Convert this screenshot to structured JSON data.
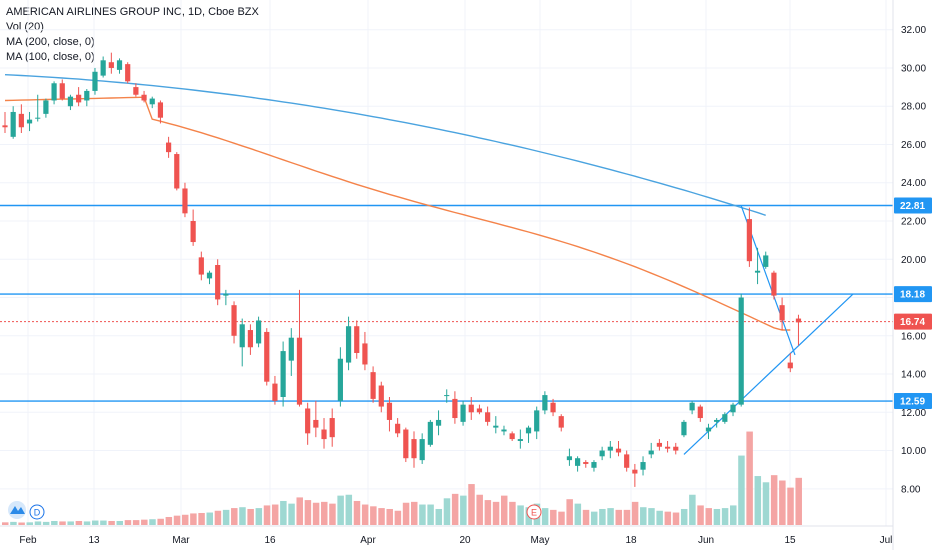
{
  "legend": {
    "title": "AMERICAN AIRLINES GROUP INC, 1D, Cboe BZX",
    "vol": "Vol (20)",
    "ma200": "MA (200, close, 0)",
    "ma100": "MA (100, close, 0)"
  },
  "markers": {
    "dividend": "D",
    "earnings": "E"
  },
  "colors": {
    "up": "#26a69a",
    "down": "#ef5350",
    "vol_up": "#9ed8d2",
    "vol_down": "#f4a5a4",
    "ma200": "#4aa3df",
    "ma100": "#f4834a",
    "level": "#2196f3",
    "current": "#ef5350"
  },
  "chart_data": {
    "type": "candlestick",
    "title": "AMERICAN AIRLINES GROUP INC, 1D, Cboe BZX",
    "y_axis": {
      "ylim": [
        6.5,
        33.5
      ],
      "ticks": [
        "32.00",
        "30.00",
        "28.00",
        "26.00",
        "24.00",
        "22.00",
        "20.00",
        "18.00",
        "16.00",
        "14.00",
        "12.00",
        "10.00",
        "8.00"
      ]
    },
    "x_axis": {
      "ticks": [
        "Feb",
        "13",
        "Mar",
        "16",
        "Apr",
        "20",
        "May",
        "18",
        "Jun",
        "15",
        "Jul"
      ]
    },
    "price_levels": [
      {
        "value": 22.81,
        "label": "22.81"
      },
      {
        "value": 18.18,
        "label": "18.18"
      },
      {
        "value": 12.59,
        "label": "12.59"
      }
    ],
    "last_price": {
      "value": 16.74,
      "label": "16.74"
    },
    "candles": [
      [
        27.0,
        27.7,
        26.6,
        26.9
      ],
      [
        26.4,
        28.0,
        26.3,
        27.7
      ],
      [
        27.6,
        28.1,
        26.6,
        26.9
      ],
      [
        27.1,
        27.7,
        26.7,
        27.3
      ],
      [
        27.4,
        28.6,
        27.2,
        27.4
      ],
      [
        27.6,
        28.4,
        27.4,
        28.3
      ],
      [
        28.3,
        29.3,
        28.1,
        29.2
      ],
      [
        29.2,
        29.4,
        28.3,
        28.4
      ],
      [
        28.0,
        28.6,
        27.8,
        28.5
      ],
      [
        28.6,
        29.0,
        28.0,
        28.2
      ],
      [
        28.3,
        28.9,
        28.0,
        28.8
      ],
      [
        28.8,
        30.0,
        28.6,
        29.8
      ],
      [
        29.6,
        30.6,
        29.5,
        30.4
      ],
      [
        30.3,
        30.8,
        29.7,
        30.0
      ],
      [
        29.9,
        30.5,
        29.7,
        30.4
      ],
      [
        30.2,
        30.3,
        29.2,
        29.3
      ],
      [
        29.0,
        29.2,
        28.5,
        28.6
      ],
      [
        28.6,
        28.8,
        28.2,
        28.3
      ],
      [
        28.1,
        28.5,
        27.9,
        28.4
      ],
      [
        28.2,
        28.3,
        27.1,
        27.4
      ],
      [
        26.1,
        26.4,
        25.3,
        25.6
      ],
      [
        25.5,
        25.6,
        23.6,
        23.7
      ],
      [
        23.7,
        24.0,
        22.2,
        22.4
      ],
      [
        22.0,
        22.6,
        20.7,
        20.9
      ],
      [
        20.1,
        20.4,
        18.9,
        19.2
      ],
      [
        19.0,
        19.4,
        18.7,
        19.3
      ],
      [
        19.7,
        20.0,
        17.6,
        17.9
      ],
      [
        18.1,
        18.4,
        17.6,
        18.2
      ],
      [
        17.6,
        17.8,
        15.6,
        16.0
      ],
      [
        15.4,
        16.9,
        14.4,
        16.6
      ],
      [
        16.3,
        16.6,
        15.0,
        15.4
      ],
      [
        15.6,
        17.0,
        15.4,
        16.8
      ],
      [
        16.2,
        16.4,
        13.4,
        13.6
      ],
      [
        13.5,
        13.9,
        12.4,
        12.6
      ],
      [
        12.8,
        15.7,
        12.3,
        15.2
      ],
      [
        14.7,
        16.4,
        13.9,
        15.9
      ],
      [
        15.9,
        18.4,
        12.3,
        12.4
      ],
      [
        12.2,
        12.5,
        10.3,
        10.9
      ],
      [
        11.6,
        12.6,
        10.7,
        11.2
      ],
      [
        11.1,
        11.7,
        10.1,
        10.6
      ],
      [
        11.7,
        12.2,
        10.2,
        10.7
      ],
      [
        12.6,
        15.4,
        12.3,
        14.8
      ],
      [
        14.6,
        17.0,
        14.2,
        16.5
      ],
      [
        16.5,
        16.8,
        14.8,
        15.1
      ],
      [
        15.6,
        16.2,
        14.2,
        14.5
      ],
      [
        14.1,
        14.4,
        12.5,
        12.7
      ],
      [
        13.4,
        13.6,
        12.0,
        12.3
      ],
      [
        12.5,
        12.8,
        11.0,
        11.6
      ],
      [
        11.4,
        11.7,
        10.7,
        10.9
      ],
      [
        11.1,
        11.2,
        9.4,
        9.6
      ],
      [
        10.6,
        11.0,
        9.1,
        9.6
      ],
      [
        9.5,
        10.9,
        9.3,
        10.6
      ],
      [
        10.3,
        11.6,
        10.2,
        11.5
      ],
      [
        11.3,
        12.1,
        10.8,
        11.6
      ],
      [
        12.9,
        13.2,
        12.5,
        12.9
      ],
      [
        12.7,
        13.1,
        11.4,
        11.7
      ],
      [
        11.5,
        12.6,
        11.3,
        12.4
      ],
      [
        12.4,
        12.8,
        11.6,
        12.0
      ],
      [
        12.2,
        12.4,
        11.9,
        12.0
      ],
      [
        12.0,
        12.3,
        11.3,
        11.5
      ],
      [
        11.2,
        11.8,
        10.9,
        11.3
      ],
      [
        11.0,
        11.3,
        10.8,
        11.1
      ],
      [
        10.9,
        11.0,
        10.5,
        10.6
      ],
      [
        10.5,
        11.1,
        10.1,
        10.6
      ],
      [
        10.9,
        11.3,
        10.4,
        11.2
      ],
      [
        11.0,
        12.3,
        10.6,
        12.1
      ],
      [
        12.1,
        13.1,
        11.9,
        12.9
      ],
      [
        12.5,
        12.7,
        11.8,
        12.0
      ],
      [
        11.8,
        11.9,
        11.0,
        11.2
      ],
      [
        9.5,
        10.1,
        9.2,
        9.7
      ],
      [
        9.2,
        9.7,
        8.9,
        9.6
      ],
      [
        9.4,
        9.5,
        9.1,
        9.3
      ],
      [
        9.1,
        9.5,
        8.9,
        9.4
      ],
      [
        9.7,
        10.2,
        9.5,
        10.0
      ],
      [
        10.0,
        10.5,
        9.6,
        10.2
      ],
      [
        10.1,
        10.5,
        9.7,
        9.9
      ],
      [
        9.8,
        10.0,
        8.9,
        9.1
      ],
      [
        9.0,
        9.3,
        8.1,
        8.8
      ],
      [
        9.0,
        9.7,
        8.7,
        9.4
      ],
      [
        9.8,
        10.4,
        9.6,
        10.0
      ],
      [
        10.4,
        10.6,
        10.0,
        10.2
      ],
      [
        10.2,
        10.5,
        9.9,
        10.1
      ],
      [
        10.2,
        10.4,
        9.8,
        10.0
      ],
      [
        10.8,
        11.6,
        10.7,
        11.5
      ],
      [
        12.1,
        12.6,
        11.9,
        12.5
      ],
      [
        12.3,
        12.4,
        11.5,
        11.7
      ],
      [
        11.0,
        11.4,
        10.6,
        11.2
      ],
      [
        11.5,
        11.7,
        11.2,
        11.6
      ],
      [
        11.5,
        12.0,
        11.4,
        11.9
      ],
      [
        12.0,
        12.5,
        11.8,
        12.4
      ],
      [
        12.4,
        18.2,
        12.3,
        18.0
      ],
      [
        22.1,
        22.7,
        19.6,
        19.9
      ],
      [
        19.3,
        20.6,
        18.7,
        19.4
      ],
      [
        19.6,
        20.4,
        19.5,
        20.2
      ],
      [
        19.3,
        19.4,
        17.9,
        18.1
      ],
      [
        17.6,
        18.0,
        16.3,
        16.8
      ],
      [
        14.6,
        15.1,
        14.1,
        14.3
      ],
      [
        16.9,
        17.1,
        15.5,
        16.7
      ]
    ],
    "volume": [
      [
        0.3,
        "down"
      ],
      [
        0.35,
        "up"
      ],
      [
        0.28,
        "down"
      ],
      [
        0.3,
        "up"
      ],
      [
        0.4,
        "up"
      ],
      [
        0.35,
        "up"
      ],
      [
        0.45,
        "up"
      ],
      [
        0.4,
        "down"
      ],
      [
        0.4,
        "up"
      ],
      [
        0.45,
        "down"
      ],
      [
        0.4,
        "up"
      ],
      [
        0.5,
        "up"
      ],
      [
        0.5,
        "up"
      ],
      [
        0.45,
        "down"
      ],
      [
        0.45,
        "up"
      ],
      [
        0.55,
        "down"
      ],
      [
        0.55,
        "down"
      ],
      [
        0.6,
        "down"
      ],
      [
        0.65,
        "up"
      ],
      [
        0.7,
        "down"
      ],
      [
        0.9,
        "down"
      ],
      [
        1.05,
        "down"
      ],
      [
        1.15,
        "down"
      ],
      [
        1.3,
        "down"
      ],
      [
        1.35,
        "down"
      ],
      [
        1.4,
        "up"
      ],
      [
        1.6,
        "down"
      ],
      [
        1.7,
        "up"
      ],
      [
        1.9,
        "down"
      ],
      [
        2.0,
        "up"
      ],
      [
        1.8,
        "down"
      ],
      [
        1.9,
        "up"
      ],
      [
        2.2,
        "down"
      ],
      [
        2.3,
        "down"
      ],
      [
        2.7,
        "up"
      ],
      [
        2.4,
        "up"
      ],
      [
        3.1,
        "down"
      ],
      [
        2.8,
        "down"
      ],
      [
        2.5,
        "down"
      ],
      [
        2.6,
        "down"
      ],
      [
        2.4,
        "down"
      ],
      [
        3.3,
        "up"
      ],
      [
        3.4,
        "up"
      ],
      [
        2.7,
        "down"
      ],
      [
        2.3,
        "down"
      ],
      [
        2.1,
        "down"
      ],
      [
        1.9,
        "down"
      ],
      [
        1.8,
        "down"
      ],
      [
        1.6,
        "down"
      ],
      [
        2.5,
        "down"
      ],
      [
        2.6,
        "down"
      ],
      [
        2.3,
        "up"
      ],
      [
        2.3,
        "up"
      ],
      [
        1.8,
        "up"
      ],
      [
        3.0,
        "up"
      ],
      [
        3.5,
        "down"
      ],
      [
        3.3,
        "up"
      ],
      [
        4.6,
        "down"
      ],
      [
        3.4,
        "down"
      ],
      [
        2.8,
        "down"
      ],
      [
        2.6,
        "down"
      ],
      [
        3.3,
        "down"
      ],
      [
        2.6,
        "down"
      ],
      [
        2.2,
        "up"
      ],
      [
        2.0,
        "up"
      ],
      [
        2.4,
        "up"
      ],
      [
        1.9,
        "up"
      ],
      [
        1.7,
        "down"
      ],
      [
        1.5,
        "down"
      ],
      [
        2.9,
        "down"
      ],
      [
        2.4,
        "up"
      ],
      [
        1.7,
        "down"
      ],
      [
        1.5,
        "up"
      ],
      [
        1.8,
        "up"
      ],
      [
        1.9,
        "up"
      ],
      [
        1.7,
        "down"
      ],
      [
        1.7,
        "down"
      ],
      [
        2.6,
        "down"
      ],
      [
        2.0,
        "up"
      ],
      [
        1.9,
        "up"
      ],
      [
        1.6,
        "up"
      ],
      [
        1.5,
        "down"
      ],
      [
        1.4,
        "down"
      ],
      [
        1.8,
        "up"
      ],
      [
        3.4,
        "up"
      ],
      [
        2.2,
        "down"
      ],
      [
        1.9,
        "down"
      ],
      [
        1.8,
        "up"
      ],
      [
        1.9,
        "up"
      ],
      [
        2.2,
        "up"
      ],
      [
        7.8,
        "up"
      ],
      [
        10.5,
        "down"
      ],
      [
        5.5,
        "up"
      ],
      [
        4.8,
        "up"
      ],
      [
        5.6,
        "down"
      ],
      [
        5.0,
        "down"
      ],
      [
        4.2,
        "down"
      ],
      [
        5.3,
        "down"
      ]
    ]
  }
}
